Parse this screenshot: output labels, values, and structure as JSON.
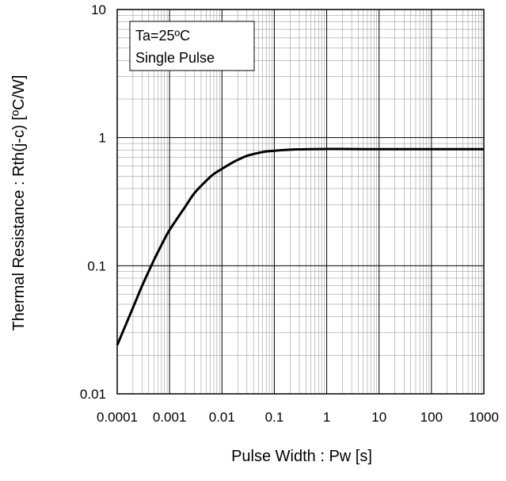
{
  "chart_data": {
    "type": "line",
    "title": "",
    "xlabel": "Pulse Width : Pw [s]",
    "ylabel": "Thermal  Resistance : Rth(j-c)  [ºC/W]",
    "x_scale": "log",
    "y_scale": "log",
    "xlim": [
      0.0001,
      1000
    ],
    "ylim": [
      0.01,
      10
    ],
    "x_ticks": [
      "0.0001",
      "0.001",
      "0.01",
      "0.1",
      "1",
      "10",
      "100",
      "1000"
    ],
    "y_ticks": [
      "0.01",
      "0.1",
      "1",
      "10"
    ],
    "grid": "major and minor",
    "legend": "none",
    "annotation": [
      "Ta=25ºC",
      "Single Pulse"
    ],
    "series": [
      {
        "color": "#000000",
        "x": [
          0.0001,
          0.0002,
          0.0003,
          0.0005,
          0.0007,
          0.001,
          0.002,
          0.003,
          0.005,
          0.007,
          0.01,
          0.015,
          0.02,
          0.03,
          0.05,
          0.07,
          0.1,
          0.2,
          0.3,
          0.5,
          1,
          2,
          5,
          10,
          100,
          1000
        ],
        "y": [
          0.024,
          0.047,
          0.07,
          0.11,
          0.145,
          0.19,
          0.29,
          0.37,
          0.46,
          0.52,
          0.57,
          0.63,
          0.67,
          0.72,
          0.76,
          0.78,
          0.79,
          0.805,
          0.81,
          0.812,
          0.815,
          0.815,
          0.812,
          0.812,
          0.812,
          0.812
        ]
      }
    ]
  }
}
